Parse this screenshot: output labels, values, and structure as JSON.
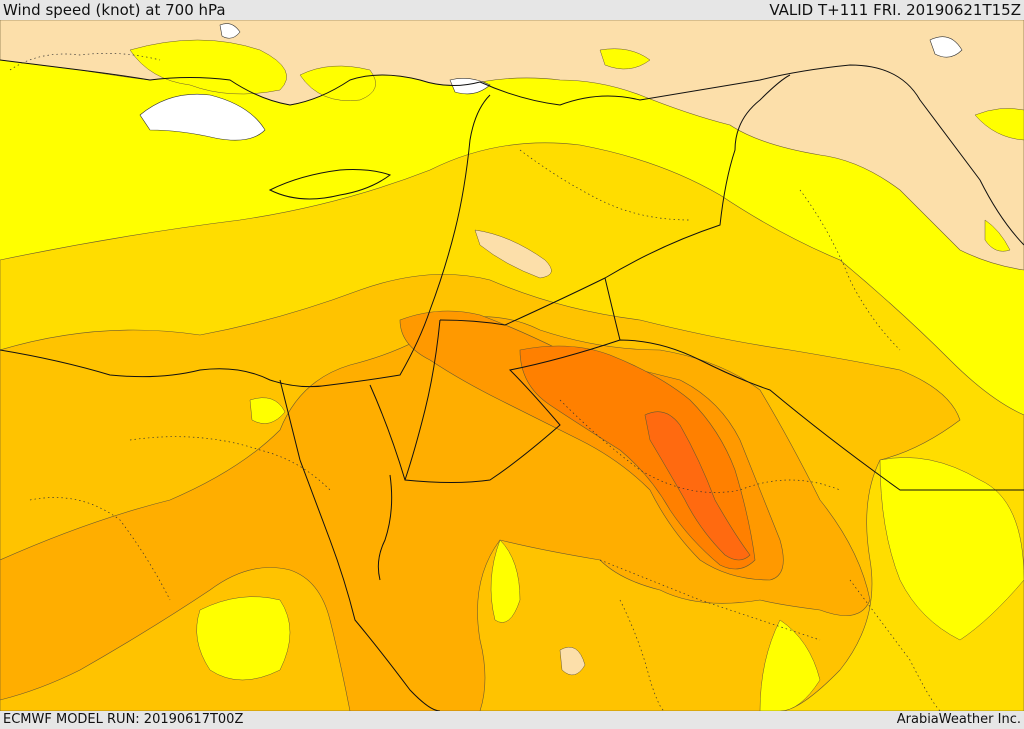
{
  "header": {
    "title": "Wind speed (knot) at 700 hPa",
    "valid": "VALID T+111 FRI. 20190621T15Z"
  },
  "footer": {
    "model_run": "ECMWF MODEL RUN: 20190617T00Z",
    "credit": "ArabiaWeather Inc."
  },
  "colors": {
    "calm": "#fcdfaa",
    "band1": "#ffff00",
    "band2": "#ffdd00",
    "band3": "#ffc300",
    "band4": "#ffae00",
    "band5": "#ff9900",
    "band6": "#ff8000",
    "band7": "#ff6a10",
    "water_gap": "#ffffff",
    "border": "#111111"
  }
}
